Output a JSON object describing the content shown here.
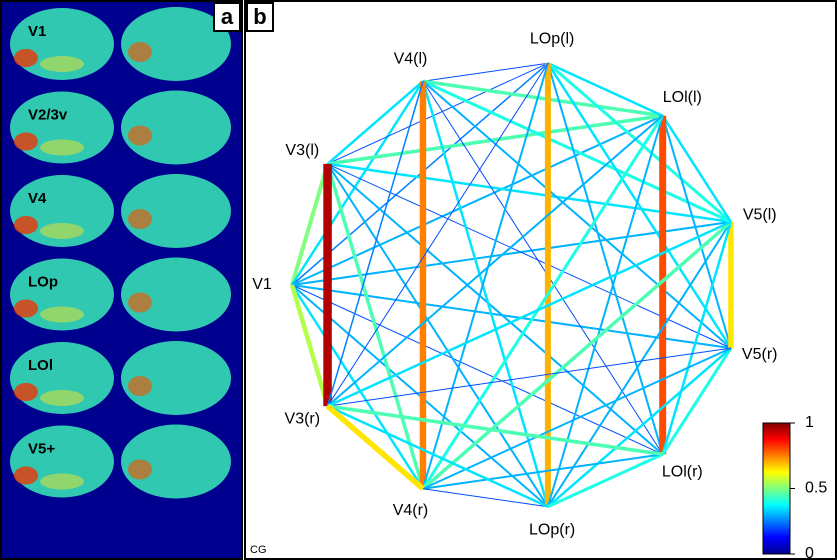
{
  "panel_a": {
    "label": "a",
    "regions": [
      "V1",
      "V2/3v",
      "V4",
      "LOp",
      "LOl",
      "V5+"
    ]
  },
  "panel_b": {
    "label": "b",
    "corner_text": "CG",
    "nodes": [
      "V1",
      "V3(l)",
      "V4(l)",
      "LOp(l)",
      "LOl(l)",
      "V5(l)",
      "V5(r)",
      "LOl(r)",
      "LOp(r)",
      "V4(r)",
      "V3(r)"
    ],
    "edges": [
      {
        "s": 0,
        "t": 1,
        "value": 0.5
      },
      {
        "s": 0,
        "t": 2,
        "value": 0.35
      },
      {
        "s": 0,
        "t": 3,
        "value": 0.25
      },
      {
        "s": 0,
        "t": 4,
        "value": 0.3
      },
      {
        "s": 0,
        "t": 5,
        "value": 0.3
      },
      {
        "s": 0,
        "t": 6,
        "value": 0.3
      },
      {
        "s": 0,
        "t": 7,
        "value": 0.2
      },
      {
        "s": 0,
        "t": 8,
        "value": 0.3
      },
      {
        "s": 0,
        "t": 9,
        "value": 0.35
      },
      {
        "s": 0,
        "t": 10,
        "value": 0.55
      },
      {
        "s": 1,
        "t": 2,
        "value": 0.35
      },
      {
        "s": 1,
        "t": 3,
        "value": 0.2
      },
      {
        "s": 1,
        "t": 4,
        "value": 0.45
      },
      {
        "s": 1,
        "t": 5,
        "value": 0.35
      },
      {
        "s": 1,
        "t": 6,
        "value": 0.2
      },
      {
        "s": 1,
        "t": 7,
        "value": 0.3
      },
      {
        "s": 1,
        "t": 8,
        "value": 0.3
      },
      {
        "s": 1,
        "t": 9,
        "value": 0.45
      },
      {
        "s": 1,
        "t": 10,
        "value": 0.95
      },
      {
        "s": 2,
        "t": 3,
        "value": 0.2
      },
      {
        "s": 2,
        "t": 4,
        "value": 0.45
      },
      {
        "s": 2,
        "t": 5,
        "value": 0.4
      },
      {
        "s": 2,
        "t": 6,
        "value": 0.3
      },
      {
        "s": 2,
        "t": 7,
        "value": 0.2
      },
      {
        "s": 2,
        "t": 8,
        "value": 0.35
      },
      {
        "s": 2,
        "t": 9,
        "value": 0.75
      },
      {
        "s": 2,
        "t": 10,
        "value": 0.25
      },
      {
        "s": 3,
        "t": 4,
        "value": 0.35
      },
      {
        "s": 3,
        "t": 5,
        "value": 0.4
      },
      {
        "s": 3,
        "t": 6,
        "value": 0.35
      },
      {
        "s": 3,
        "t": 7,
        "value": 0.3
      },
      {
        "s": 3,
        "t": 8,
        "value": 0.7
      },
      {
        "s": 3,
        "t": 9,
        "value": 0.3
      },
      {
        "s": 3,
        "t": 10,
        "value": 0.2
      },
      {
        "s": 4,
        "t": 5,
        "value": 0.35
      },
      {
        "s": 4,
        "t": 6,
        "value": 0.3
      },
      {
        "s": 4,
        "t": 7,
        "value": 0.8
      },
      {
        "s": 4,
        "t": 8,
        "value": 0.3
      },
      {
        "s": 4,
        "t": 9,
        "value": 0.4
      },
      {
        "s": 4,
        "t": 10,
        "value": 0.3
      },
      {
        "s": 5,
        "t": 6,
        "value": 0.65
      },
      {
        "s": 5,
        "t": 7,
        "value": 0.35
      },
      {
        "s": 5,
        "t": 8,
        "value": 0.3
      },
      {
        "s": 5,
        "t": 9,
        "value": 0.45
      },
      {
        "s": 5,
        "t": 10,
        "value": 0.35
      },
      {
        "s": 6,
        "t": 7,
        "value": 0.4
      },
      {
        "s": 6,
        "t": 8,
        "value": 0.35
      },
      {
        "s": 6,
        "t": 9,
        "value": 0.3
      },
      {
        "s": 6,
        "t": 10,
        "value": 0.2
      },
      {
        "s": 7,
        "t": 8,
        "value": 0.4
      },
      {
        "s": 7,
        "t": 9,
        "value": 0.3
      },
      {
        "s": 7,
        "t": 10,
        "value": 0.45
      },
      {
        "s": 8,
        "t": 9,
        "value": 0.2
      },
      {
        "s": 8,
        "t": 10,
        "value": 0.35
      },
      {
        "s": 9,
        "t": 10,
        "value": 0.65
      }
    ],
    "colorbar": {
      "ylim": [
        0,
        1
      ],
      "yticks": [
        1,
        0.5,
        0
      ]
    }
  }
}
